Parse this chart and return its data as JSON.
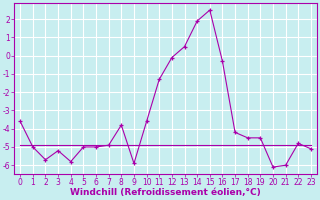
{
  "xlabel": "Windchill (Refroidissement éolien,°C)",
  "background_color": "#c8eef0",
  "grid_color": "#ffffff",
  "line_color": "#aa00aa",
  "xlim": [
    -0.5,
    23.5
  ],
  "ylim": [
    -6.5,
    2.9
  ],
  "x": [
    0,
    1,
    2,
    3,
    4,
    5,
    6,
    7,
    8,
    9,
    10,
    11,
    12,
    13,
    14,
    15,
    16,
    17,
    18,
    19,
    20,
    21,
    22,
    23
  ],
  "y_main": [
    -3.6,
    -5.0,
    -5.7,
    -5.2,
    -5.8,
    -5.0,
    -5.0,
    -4.9,
    -3.8,
    -5.9,
    -3.6,
    -1.3,
    -0.1,
    0.5,
    1.9,
    2.5,
    -0.3,
    -4.2,
    -4.5,
    -4.5,
    -6.1,
    -6.0,
    -4.8,
    -5.1
  ],
  "y_flat": [
    -4.9,
    -4.9,
    -4.9,
    -4.9,
    -4.9,
    -4.9,
    -4.9,
    -4.9,
    -4.9,
    -4.9,
    -4.9,
    -4.9,
    -4.9,
    -4.9,
    -4.9,
    -4.9,
    -4.9,
    -4.9,
    -4.9,
    -4.9,
    -4.9,
    -4.9,
    -4.9,
    -4.9
  ],
  "yticks": [
    2,
    1,
    0,
    -1,
    -2,
    -3,
    -4,
    -5,
    -6
  ],
  "xticks": [
    0,
    1,
    2,
    3,
    4,
    5,
    6,
    7,
    8,
    9,
    10,
    11,
    12,
    13,
    14,
    15,
    16,
    17,
    18,
    19,
    20,
    21,
    22,
    23
  ],
  "tick_fontsize": 5.5,
  "xlabel_fontsize": 6.5
}
